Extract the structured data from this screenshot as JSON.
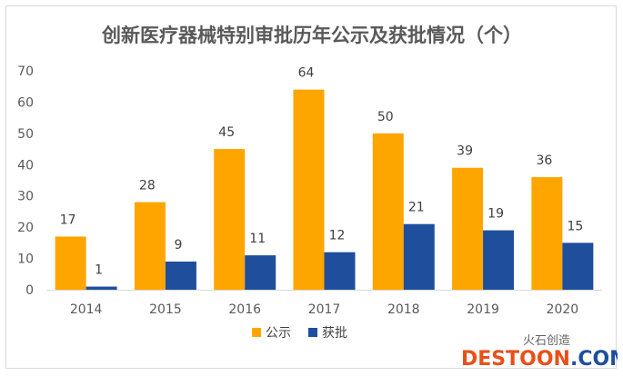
{
  "chart_data": {
    "type": "bar",
    "title": "创新医疗器械特别审批历年公示及获批情况（个）",
    "categories": [
      "2014",
      "2015",
      "2016",
      "2017",
      "2018",
      "2019",
      "2020"
    ],
    "series": [
      {
        "name": "公示",
        "values": [
          17,
          28,
          45,
          64,
          50,
          39,
          36
        ],
        "color": "#FFA500"
      },
      {
        "name": "获批",
        "values": [
          1,
          9,
          11,
          12,
          21,
          19,
          15
        ],
        "color": "#1F4E9C"
      }
    ],
    "ylim": [
      0,
      70
    ],
    "yticks": [
      0,
      10,
      20,
      30,
      40,
      50,
      60,
      70
    ],
    "grid": false,
    "legend": "bottom"
  },
  "watermark": {
    "brand": "火石创造",
    "site_part1": "DESTOON",
    "site_part2": ".COM"
  }
}
